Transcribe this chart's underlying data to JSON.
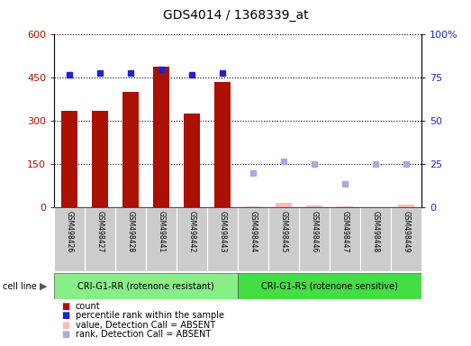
{
  "title": "GDS4014 / 1368339_at",
  "samples": [
    "GSM498426",
    "GSM498427",
    "GSM498428",
    "GSM498441",
    "GSM498442",
    "GSM498443",
    "GSM498444",
    "GSM498445",
    "GSM498446",
    "GSM498447",
    "GSM498448",
    "GSM498449"
  ],
  "count_values": [
    335,
    335,
    400,
    490,
    325,
    435,
    null,
    null,
    null,
    null,
    null,
    null
  ],
  "count_absent": [
    null,
    null,
    null,
    null,
    null,
    null,
    4,
    18,
    8,
    4,
    2,
    12
  ],
  "rank_present": [
    77,
    78,
    78,
    80,
    77,
    78,
    null,
    null,
    null,
    null,
    null,
    null
  ],
  "rank_absent": [
    null,
    null,
    null,
    null,
    null,
    null,
    20,
    27,
    25,
    14,
    25,
    25
  ],
  "groups": [
    {
      "label": "CRI-G1-RR (rotenone resistant)",
      "start": 0,
      "end": 6,
      "color": "#88ee88"
    },
    {
      "label": "CRI-G1-RS (rotenone sensitive)",
      "start": 6,
      "end": 12,
      "color": "#44dd44"
    }
  ],
  "ylim_left": [
    0,
    600
  ],
  "ylim_right": [
    0,
    100
  ],
  "yticks_left": [
    0,
    150,
    300,
    450,
    600
  ],
  "yticks_right": [
    0,
    25,
    50,
    75,
    100
  ],
  "ytick_labels_left": [
    "0",
    "150",
    "300",
    "450",
    "600"
  ],
  "ytick_labels_right": [
    "0",
    "25",
    "50",
    "75",
    "100%"
  ],
  "bar_color": "#aa1100",
  "rank_present_color": "#2222cc",
  "count_absent_color": "#ffbbbb",
  "rank_absent_color": "#aaaadd",
  "legend_items": [
    {
      "label": "count",
      "color": "#aa1100"
    },
    {
      "label": "percentile rank within the sample",
      "color": "#2222cc"
    },
    {
      "label": "value, Detection Call = ABSENT",
      "color": "#ffbbbb"
    },
    {
      "label": "rank, Detection Call = ABSENT",
      "color": "#aaaadd"
    }
  ],
  "bar_width": 0.55
}
